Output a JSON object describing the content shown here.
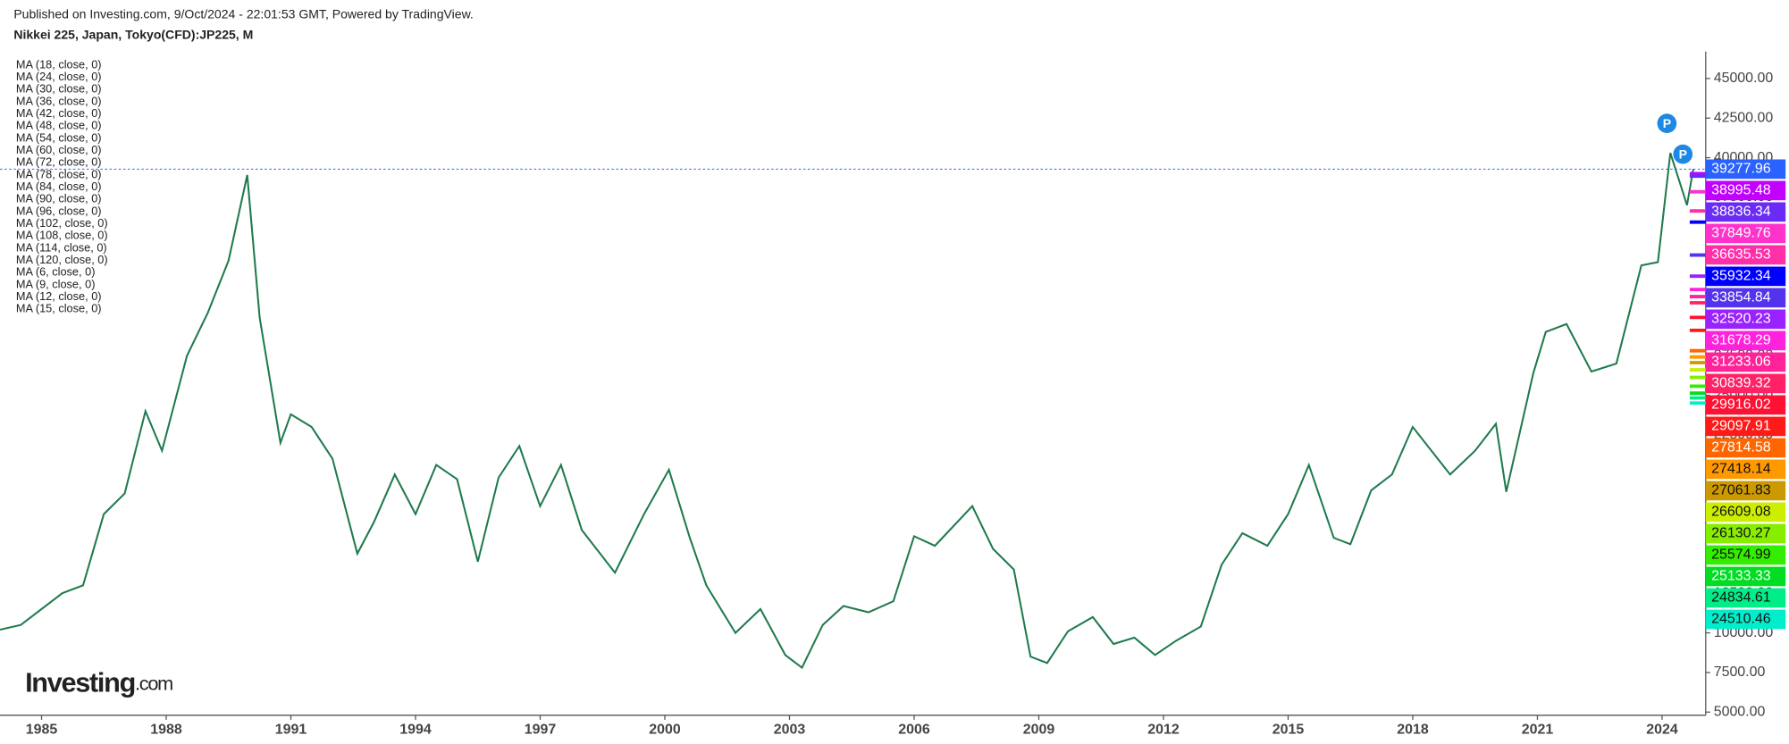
{
  "header": {
    "published": "Published on Investing.com, 9/Oct/2024 - 22:01:53 GMT, Powered by TradingView.",
    "symbol": "Nikkei 225, Japan, Tokyo(CFD):JP225, M"
  },
  "logo": {
    "name": "Investing",
    "suffix": ".com"
  },
  "chart_data": {
    "type": "line",
    "color": "#1f7a4d",
    "x": [
      1984.0,
      1984.5,
      1985.0,
      1985.5,
      1986.0,
      1986.5,
      1987.0,
      1987.5,
      1987.9,
      1988.5,
      1989.0,
      1989.5,
      1989.95,
      1990.25,
      1990.75,
      1991.0,
      1991.5,
      1992.0,
      1992.6,
      1993.0,
      1993.5,
      1994.0,
      1994.5,
      1995.0,
      1995.5,
      1996.0,
      1996.5,
      1997.0,
      1997.5,
      1998.0,
      1998.8,
      1999.5,
      2000.1,
      2000.6,
      2001.0,
      2001.7,
      2002.3,
      2002.9,
      2003.3,
      2003.8,
      2004.3,
      2004.9,
      2005.5,
      2006.0,
      2006.5,
      2007.4,
      2007.9,
      2008.4,
      2008.8,
      2009.2,
      2009.7,
      2010.3,
      2010.8,
      2011.3,
      2011.8,
      2012.3,
      2012.9,
      2013.4,
      2013.9,
      2014.5,
      2015.0,
      2015.5,
      2016.1,
      2016.5,
      2017.0,
      2017.5,
      2018.0,
      2018.9,
      2019.5,
      2020.0,
      2020.25,
      2020.9,
      2021.2,
      2021.7,
      2022.3,
      2022.9,
      2023.5,
      2023.9,
      2024.2,
      2024.6,
      2024.75
    ],
    "values": [
      10200,
      10500,
      11500,
      12500,
      13000,
      17500,
      18800,
      24000,
      21500,
      27500,
      30200,
      33500,
      38900,
      29900,
      22000,
      23800,
      23000,
      21000,
      15000,
      17000,
      20000,
      17500,
      20600,
      19700,
      14500,
      19800,
      21800,
      18000,
      20600,
      16500,
      13800,
      17500,
      20300,
      16000,
      13000,
      10000,
      11500,
      8600,
      7800,
      10500,
      11700,
      11300,
      12000,
      16100,
      15500,
      18000,
      15300,
      14000,
      8500,
      8100,
      10100,
      11000,
      9300,
      9700,
      8600,
      9500,
      10400,
      14300,
      16300,
      15500,
      17500,
      20600,
      16000,
      15600,
      19000,
      20000,
      23000,
      20000,
      21500,
      23200,
      18900,
      26400,
      29000,
      29500,
      26500,
      27000,
      33200,
      33400,
      40300,
      37000,
      39280
    ],
    "xlim": [
      1984.0,
      2025.05
    ],
    "ylim": [
      4800,
      46700
    ],
    "xticks": [
      1985,
      1988,
      1991,
      1994,
      1997,
      2000,
      2003,
      2006,
      2009,
      2012,
      2015,
      2018,
      2021,
      2024
    ],
    "yticks": [
      {
        "value": 5000,
        "label": "5000.00"
      },
      {
        "value": 7500,
        "label": "7500.00"
      },
      {
        "value": 10000,
        "label": "10000.00"
      },
      {
        "value": 12500,
        "label": "12500.00"
      },
      {
        "value": 15000,
        "label": "15000.00"
      },
      {
        "value": 17500,
        "label": "17500.00"
      },
      {
        "value": 20000,
        "label": "20000.00"
      },
      {
        "value": 22500,
        "label": "22500.00"
      },
      {
        "value": 25000,
        "label": "25000.00"
      },
      {
        "value": 27500,
        "label": "27500.00"
      },
      {
        "value": 30000,
        "label": "30000.00"
      },
      {
        "value": 32500,
        "label": "32500.00"
      },
      {
        "value": 35000,
        "label": "35000.00"
      },
      {
        "value": 37500,
        "label": "37500.00"
      },
      {
        "value": 40000,
        "label": "40000.00"
      },
      {
        "value": 42500,
        "label": "42500.00"
      },
      {
        "value": 45000,
        "label": "45000.00"
      }
    ],
    "last_price": 39277.96,
    "last_price_color": "#2962ff",
    "indicators": [
      "MA (18, close, 0)",
      "MA (24, close, 0)",
      "MA (30, close, 0)",
      "MA (36, close, 0)",
      "MA (42, close, 0)",
      "MA (48, close, 0)",
      "MA (54, close, 0)",
      "MA (60, close, 0)",
      "MA (72, close, 0)",
      "MA (78, close, 0)",
      "MA (84, close, 0)",
      "MA (90, close, 0)",
      "MA (96, close, 0)",
      "MA (102, close, 0)",
      "MA (108, close, 0)",
      "MA (114, close, 0)",
      "MA (120, close, 0)",
      "MA (6, close, 0)",
      "MA (9, close, 0)",
      "MA (12, close, 0)",
      "MA (15, close, 0)"
    ],
    "price_labels": {
      "values": [
        38995.48,
        38836.34,
        37849.76,
        36635.53,
        35932.34,
        33854.84,
        32520.23,
        31678.29,
        31233.06,
        30839.32,
        29916.02,
        29097.91,
        27814.58,
        27418.14,
        27061.83,
        26609.08,
        26130.27,
        25574.99,
        25133.33,
        24834.61,
        24510.46
      ],
      "colors": [
        "#c200ff",
        "#6a2cf5",
        "#ff33cc",
        "#ff2fa8",
        "#0000ff",
        "#5533ee",
        "#9922ff",
        "#ff22dd",
        "#ff2299",
        "#ff2266",
        "#ff1133",
        "#ff1a1a",
        "#ff6600",
        "#ff9900",
        "#cc9900",
        "#ccee00",
        "#88ee00",
        "#33ee00",
        "#00dd22",
        "#00ee88",
        "#00eecc"
      ]
    },
    "annotations": [
      "P",
      "P"
    ]
  }
}
